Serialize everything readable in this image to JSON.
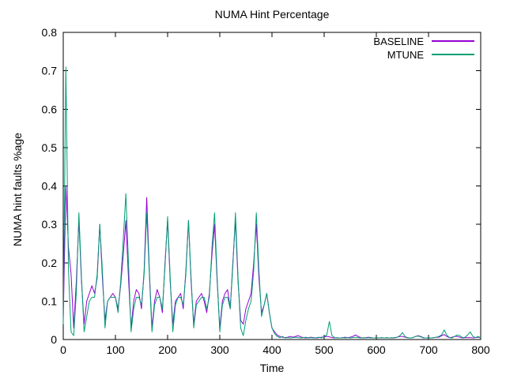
{
  "chart_data": {
    "type": "line",
    "title": "NUMA Hint Percentage",
    "xlabel": "Time",
    "ylabel": "NUMA hint faults %age",
    "xlim": [
      0,
      800
    ],
    "ylim": [
      0,
      0.8
    ],
    "grid": false,
    "legend_position": "top-right-inside",
    "xticks": [
      0,
      100,
      200,
      300,
      400,
      500,
      600,
      700,
      800
    ],
    "xtick_labels": [
      "0",
      "100",
      "200",
      "300",
      "400",
      "500",
      "600",
      "700",
      "800"
    ],
    "yticks": [
      0,
      0.1,
      0.2,
      0.3,
      0.4,
      0.5,
      0.6,
      0.7,
      0.8
    ],
    "ytick_labels": [
      "0",
      "0.1",
      "0.2",
      "0.3",
      "0.4",
      "0.5",
      "0.6",
      "0.7",
      "0.8"
    ],
    "x_start": 0,
    "x_step": 5,
    "series": [
      {
        "name": "BASELINE",
        "color": "#9400d3",
        "values": [
          0.05,
          0.4,
          0.24,
          0.17,
          0.03,
          0.15,
          0.31,
          0.15,
          0.04,
          0.1,
          0.12,
          0.14,
          0.12,
          0.16,
          0.3,
          0.16,
          0.05,
          0.1,
          0.11,
          0.12,
          0.11,
          0.08,
          0.14,
          0.22,
          0.31,
          0.16,
          0.03,
          0.1,
          0.13,
          0.12,
          0.08,
          0.18,
          0.37,
          0.18,
          0.03,
          0.1,
          0.13,
          0.11,
          0.07,
          0.2,
          0.31,
          0.15,
          0.04,
          0.1,
          0.11,
          0.12,
          0.08,
          0.18,
          0.31,
          0.15,
          0.04,
          0.1,
          0.11,
          0.12,
          0.1,
          0.07,
          0.12,
          0.22,
          0.3,
          0.15,
          0.03,
          0.1,
          0.12,
          0.13,
          0.08,
          0.2,
          0.31,
          0.15,
          0.05,
          0.04,
          0.08,
          0.1,
          0.12,
          0.2,
          0.3,
          0.16,
          0.07,
          0.09,
          0.12,
          0.07,
          0.03,
          0.02,
          0.012,
          0.008,
          0.006,
          0.005,
          0.006,
          0.008,
          0.006,
          0.008,
          0.01,
          0.007,
          0.005,
          0.004,
          0.005,
          0.006,
          0.005,
          0.004,
          0.005,
          0.006,
          0.007,
          0.008,
          0.007,
          0.005,
          0.004,
          0.005,
          0.004,
          0.005,
          0.006,
          0.005,
          0.006,
          0.008,
          0.012,
          0.008,
          0.005,
          0.004,
          0.005,
          0.006,
          0.005,
          0.004,
          0.005,
          0.004,
          0.005,
          0.004,
          0.005,
          0.004,
          0.004,
          0.005,
          0.006,
          0.008,
          0.008,
          0.006,
          0.005,
          0.004,
          0.005,
          0.008,
          0.01,
          0.008,
          0.005,
          0.004,
          0.005,
          0.004,
          0.005,
          0.006,
          0.006,
          0.01,
          0.013,
          0.008,
          0.005,
          0.006,
          0.008,
          0.008,
          0.006,
          0.004,
          0.005,
          0.005,
          0.005,
          0.004,
          0.005,
          0.006,
          0.004
        ]
      },
      {
        "name": "MTUNE",
        "color": "#009e73",
        "values": [
          0.04,
          0.71,
          0.18,
          0.02,
          0.01,
          0.12,
          0.33,
          0.16,
          0.02,
          0.06,
          0.1,
          0.11,
          0.11,
          0.17,
          0.3,
          0.18,
          0.03,
          0.1,
          0.11,
          0.11,
          0.11,
          0.07,
          0.15,
          0.26,
          0.38,
          0.2,
          0.02,
          0.08,
          0.11,
          0.11,
          0.09,
          0.17,
          0.33,
          0.17,
          0.02,
          0.09,
          0.11,
          0.11,
          0.08,
          0.19,
          0.32,
          0.16,
          0.02,
          0.09,
          0.11,
          0.11,
          0.09,
          0.17,
          0.31,
          0.16,
          0.03,
          0.09,
          0.1,
          0.11,
          0.11,
          0.08,
          0.11,
          0.24,
          0.33,
          0.16,
          0.02,
          0.09,
          0.11,
          0.11,
          0.08,
          0.19,
          0.33,
          0.16,
          0.03,
          0.01,
          0.05,
          0.08,
          0.1,
          0.18,
          0.33,
          0.18,
          0.06,
          0.09,
          0.12,
          0.07,
          0.03,
          0.015,
          0.008,
          0.005,
          0.008,
          0.004,
          0.005,
          0.004,
          0.005,
          0.006,
          0.005,
          0.004,
          0.005,
          0.006,
          0.004,
          0.005,
          0.004,
          0.005,
          0.006,
          0.004,
          0.008,
          0.012,
          0.047,
          0.01,
          0.005,
          0.004,
          0.004,
          0.005,
          0.004,
          0.005,
          0.004,
          0.005,
          0.006,
          0.005,
          0.004,
          0.005,
          0.004,
          0.005,
          0.004,
          0.004,
          0.005,
          0.004,
          0.005,
          0.004,
          0.005,
          0.004,
          0.005,
          0.004,
          0.006,
          0.01,
          0.018,
          0.008,
          0.004,
          0.004,
          0.005,
          0.008,
          0.009,
          0.007,
          0.004,
          0.004,
          0.005,
          0.004,
          0.005,
          0.006,
          0.008,
          0.012,
          0.025,
          0.012,
          0.005,
          0.004,
          0.008,
          0.012,
          0.01,
          0.005,
          0.006,
          0.012,
          0.02,
          0.008,
          0.005,
          0.008,
          0.004
        ]
      }
    ]
  }
}
